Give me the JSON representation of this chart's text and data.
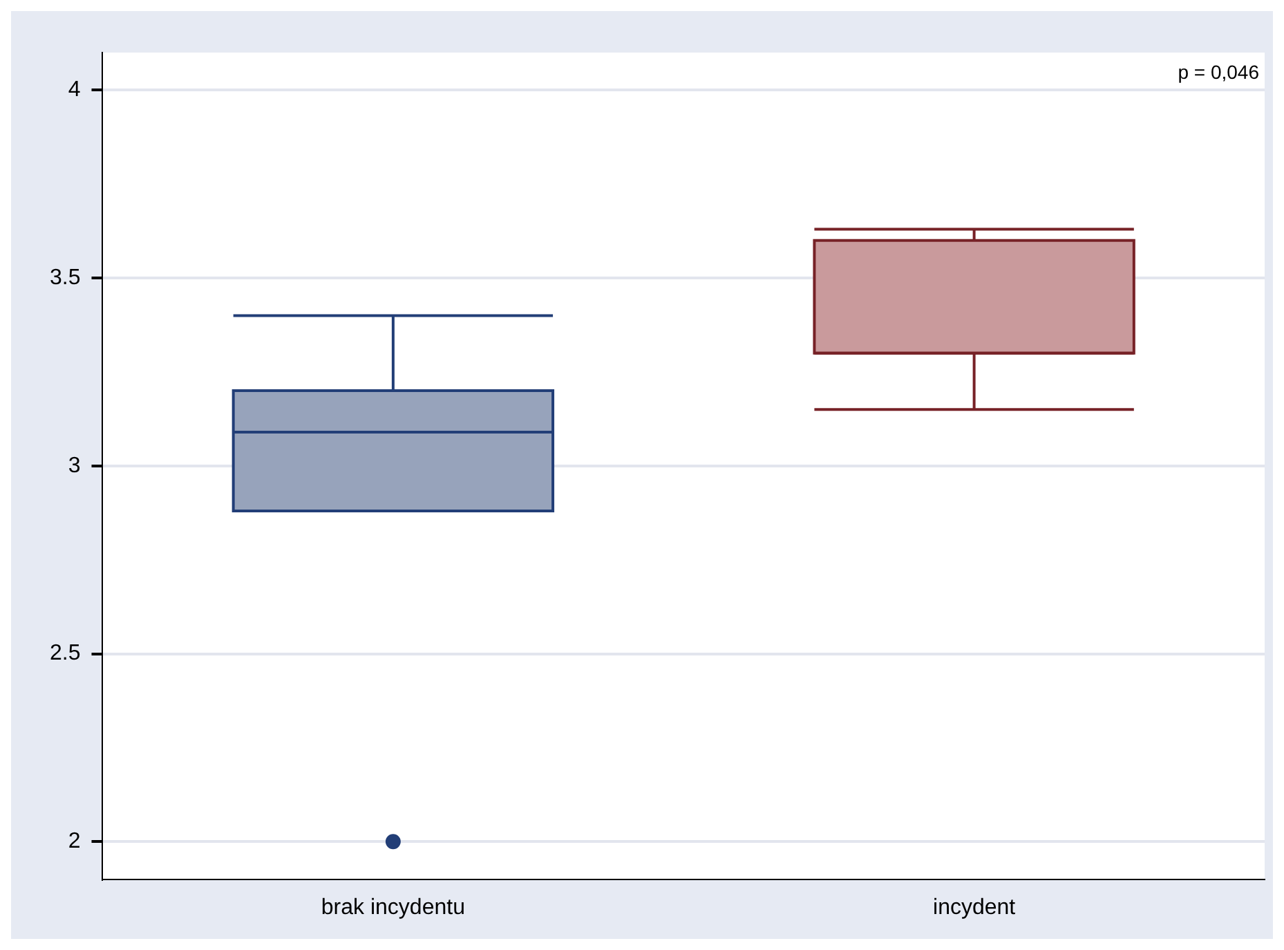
{
  "chart_data": {
    "type": "box",
    "categories": [
      "brak incydentu",
      "incydent"
    ],
    "boxes": [
      {
        "low": 2.88,
        "q1": 2.88,
        "median": 3.09,
        "q3": 3.2,
        "high": 3.4,
        "outliers": [
          2.0
        ]
      },
      {
        "low": 3.15,
        "q1": 3.3,
        "median": 3.3,
        "q3": 3.6,
        "high": 3.63
      }
    ],
    "colors": [
      "#97a3bb",
      "#c99a9c"
    ],
    "ylim": [
      1.9,
      4.1
    ],
    "yticks": [
      2,
      2.5,
      3,
      3.5,
      4
    ],
    "grid": "y",
    "legend": false,
    "annotations": [
      "p = 0,046"
    ]
  }
}
